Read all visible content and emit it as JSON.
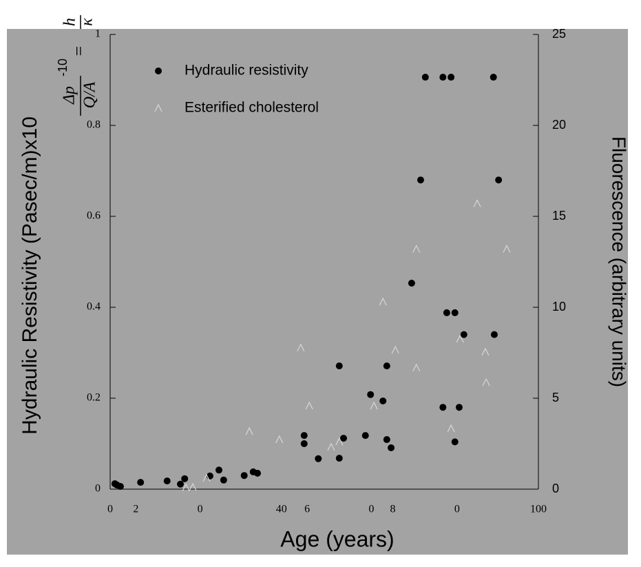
{
  "chart_data": {
    "type": "scatter",
    "xlabel": "Age (years)",
    "ylabel": "Hydraulic Resistivity (Pasec/m)x10",
    "ylabel_exponent": "-10",
    "formula": {
      "lhs_numerator": "h",
      "lhs_denominator": "κ",
      "equals": "=",
      "rhs_numerator": "Δp",
      "rhs_denominator": "Q/A"
    },
    "y2label": "Fluorescence (arbitrary units)",
    "xlim": [
      0,
      100
    ],
    "xticks": [
      {
        "value": 0,
        "label": "0"
      },
      {
        "value": 6,
        "label": "2"
      },
      {
        "value": 21,
        "label": "0"
      },
      {
        "value": 40,
        "label": "40"
      },
      {
        "value": 46,
        "label": "6"
      },
      {
        "value": 61,
        "label": "0"
      },
      {
        "value": 66,
        "label": "8"
      },
      {
        "value": 81,
        "label": "0"
      },
      {
        "value": 100,
        "label": "100"
      }
    ],
    "ylim": [
      0,
      1
    ],
    "yticks": [
      0,
      0.2,
      0.4,
      0.6,
      0.8,
      1
    ],
    "y2lim": [
      0,
      25
    ],
    "y2ticks": [
      0,
      5,
      10,
      15,
      20,
      25
    ],
    "legend": "upper left",
    "series": [
      {
        "name": "Hydraulic resistivity",
        "color": "#000000",
        "marker": "circle",
        "x": [
          1.1,
          1.6,
          2.4,
          7.1,
          13.3,
          16.4,
          17.4,
          23.3,
          25.4,
          26.5,
          31.3,
          33.4,
          34.4,
          45.3,
          45.3,
          48.6,
          53.5,
          53.5,
          54.5,
          59.6,
          60.8,
          63.7,
          64.6,
          64.6,
          65.6,
          70.4,
          72.5,
          73.6,
          77.7,
          77.7,
          78.6,
          79.6,
          80.5,
          80.5,
          81.5,
          82.6,
          89.5,
          89.7,
          90.7
        ],
        "values": [
          0.012,
          0.009,
          0.006,
          0.015,
          0.018,
          0.011,
          0.023,
          0.029,
          0.042,
          0.02,
          0.03,
          0.038,
          0.035,
          0.118,
          0.1,
          0.067,
          0.271,
          0.068,
          0.112,
          0.118,
          0.208,
          0.194,
          0.271,
          0.109,
          0.091,
          0.453,
          0.68,
          0.906,
          0.906,
          0.18,
          0.388,
          0.906,
          0.388,
          0.104,
          0.18,
          0.34,
          0.906,
          0.34,
          0.68
        ]
      },
      {
        "name": "Esterified cholesterol",
        "color": "#d8d8d8",
        "marker": "triangle",
        "axis": "y2",
        "x": [
          17.7,
          19.3,
          22.5,
          32.5,
          39.5,
          44.5,
          46.5,
          51.6,
          53.5,
          61.6,
          63.7,
          66.6,
          71.5,
          71.5,
          79.6,
          81.7,
          85.7,
          87.6,
          87.8,
          92.6
        ],
        "values": [
          0.08,
          0.11,
          0.61,
          3.18,
          2.73,
          7.77,
          4.58,
          2.31,
          2.61,
          4.58,
          10.3,
          7.65,
          13.2,
          6.67,
          3.33,
          8.26,
          15.7,
          7.54,
          5.87,
          13.2
        ]
      }
    ]
  }
}
